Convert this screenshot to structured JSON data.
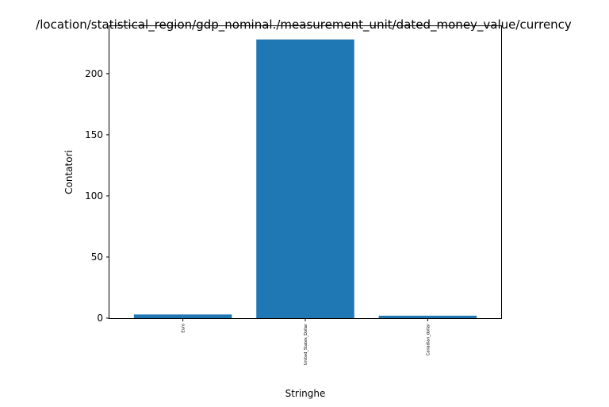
{
  "chart_data": {
    "type": "bar",
    "title": "/location/statistical_region/gdp_nominal./measurement_unit/dated_money_value/currency",
    "xlabel": "Stringhe",
    "ylabel": "Contatori",
    "categories": [
      "Euro",
      "United_States_Dollar",
      "Canadian_dollar"
    ],
    "values": [
      3,
      228,
      2
    ],
    "ylim": [
      0,
      239.5
    ],
    "yticks": [
      0,
      50,
      100,
      150,
      200
    ],
    "bar_color": "#1f77b4",
    "grid": false
  }
}
